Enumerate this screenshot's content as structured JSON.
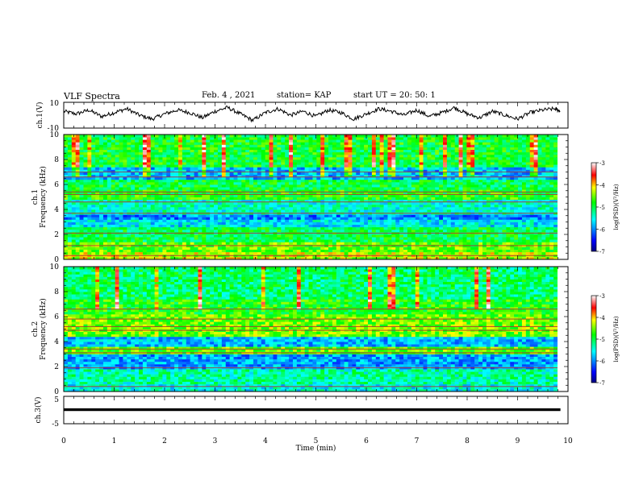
{
  "header": {
    "title": "VLF Spectra",
    "date": "Feb. 4 , 2021",
    "station": "station= KAP",
    "start": "start UT = 20: 50: 1"
  },
  "chart_data": [
    {
      "type": "line",
      "panel": "waveform-ch1",
      "ylabel": "ch.1(V)",
      "ylim": [
        -10,
        10
      ],
      "yticks": [
        "10",
        "-10"
      ],
      "xlim": [
        0,
        10
      ],
      "color": "#000000",
      "x": [
        0,
        0.25,
        0.5,
        0.75,
        1,
        1.25,
        1.5,
        1.75,
        2,
        2.25,
        2.5,
        2.75,
        3,
        3.25,
        3.5,
        3.75,
        4,
        4.25,
        4.5,
        4.75,
        5,
        5.25,
        5.5,
        5.75,
        6,
        6.25,
        6.5,
        6.75,
        7,
        7.25,
        7.5,
        7.75,
        8,
        8.25,
        8.5,
        8.75,
        9,
        9.25,
        9.5,
        9.75,
        9.85
      ],
      "y": [
        3,
        1,
        4,
        -1,
        2,
        5,
        0,
        -3,
        1,
        4,
        2,
        -2,
        3,
        6,
        1,
        -4,
        2,
        5,
        0,
        3,
        -1,
        4,
        2,
        -3,
        1,
        5,
        3,
        0,
        4,
        -1,
        2,
        6,
        1,
        -2,
        3,
        0,
        -3,
        2,
        4,
        5,
        3
      ]
    },
    {
      "type": "heatmap",
      "panel": "spectrogram-ch1",
      "ylabel": "ch.1 Frequency (kHz)",
      "xlim": [
        0,
        10
      ],
      "ylim": [
        0,
        10
      ],
      "yticks": [
        "0",
        "2",
        "4",
        "6",
        "8",
        "10"
      ],
      "colorbar": {
        "label": "log(PSD)(V²/Hz)",
        "range": [
          -7,
          -3
        ],
        "ticks": [
          "-3",
          "-4",
          "-5",
          "-6",
          "-7"
        ]
      },
      "bands": [
        {
          "f0": 0.0,
          "f1": 0.6,
          "level": -4.3
        },
        {
          "f0": 0.6,
          "f1": 1.4,
          "level": -4.6
        },
        {
          "f0": 1.4,
          "f1": 2.6,
          "level": -5.0
        },
        {
          "f0": 2.6,
          "f1": 3.2,
          "level": -5.6
        },
        {
          "f0": 3.2,
          "f1": 3.7,
          "level": -6.0
        },
        {
          "f0": 3.7,
          "f1": 4.8,
          "level": -5.4
        },
        {
          "f0": 4.8,
          "f1": 5.6,
          "level": -4.8
        },
        {
          "f0": 5.6,
          "f1": 6.4,
          "level": -5.0
        },
        {
          "f0": 6.4,
          "f1": 7.4,
          "level": -5.8
        },
        {
          "f0": 7.4,
          "f1": 10.0,
          "level": -4.9
        }
      ],
      "lines_khz": [
        0.3,
        1.1,
        2.1,
        3.7,
        4.6,
        5.2,
        5.4,
        6.6,
        7.0
      ]
    },
    {
      "type": "heatmap",
      "panel": "spectrogram-ch2",
      "ylabel": "ch.2 Frequency (kHz)",
      "xlim": [
        0,
        10
      ],
      "ylim": [
        0,
        10
      ],
      "yticks": [
        "0",
        "2",
        "4",
        "6",
        "8",
        "10"
      ],
      "colorbar": {
        "label": "log(PSD)(V²/Hz)",
        "range": [
          -7,
          -3
        ],
        "ticks": [
          "-3",
          "-4",
          "-5",
          "-6",
          "-7"
        ]
      },
      "bands": [
        {
          "f0": 0.0,
          "f1": 0.7,
          "level": -5.5
        },
        {
          "f0": 0.7,
          "f1": 1.8,
          "level": -5.3
        },
        {
          "f0": 1.8,
          "f1": 3.0,
          "level": -5.9
        },
        {
          "f0": 3.0,
          "f1": 3.6,
          "level": -4.6
        },
        {
          "f0": 3.6,
          "f1": 4.4,
          "level": -5.8
        },
        {
          "f0": 4.4,
          "f1": 6.2,
          "level": -4.5
        },
        {
          "f0": 6.2,
          "f1": 7.4,
          "level": -4.8
        },
        {
          "f0": 7.4,
          "f1": 10.0,
          "level": -5.1
        }
      ],
      "lines_khz": [
        0.4,
        1.9,
        3.1,
        3.4,
        4.9,
        5.2,
        5.8,
        6.6
      ]
    },
    {
      "type": "line",
      "panel": "waveform-ch3",
      "ylabel": "ch.3(V)",
      "ylim": [
        -5,
        5
      ],
      "yticks": [
        "5",
        "-5"
      ],
      "xlim": [
        0,
        10
      ],
      "xlabel": "Time (min)",
      "xticks": [
        "0",
        "1",
        "2",
        "3",
        "4",
        "5",
        "6",
        "7",
        "8",
        "9",
        "10"
      ],
      "x": [
        0,
        9.85
      ],
      "y": [
        0.2,
        0.2
      ],
      "noise_band": [
        -0.4,
        0.7
      ]
    }
  ]
}
